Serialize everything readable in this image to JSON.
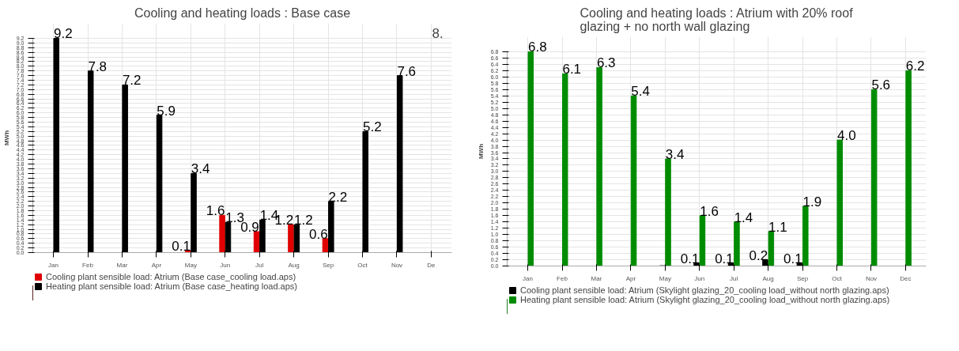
{
  "chart_data": [
    {
      "type": "bar",
      "title": "Cooling and heating loads : Base case",
      "ylabel": "MWh",
      "categories": [
        "Jan",
        "Feb",
        "Mar",
        "Apr",
        "May",
        "Jun",
        "Jul",
        "Aug",
        "Sep",
        "Oct",
        "Nov",
        "De"
      ],
      "series": [
        {
          "name": "Cooling plant sensible load: Atrium (Base case_cooling load.aps)",
          "color": "#e00000",
          "values": [
            0,
            0,
            0,
            0,
            0.1,
            1.6,
            0.9,
            1.2,
            0.6,
            0,
            0,
            null
          ],
          "value_labels": [
            null,
            null,
            null,
            null,
            "0.1",
            "1.6",
            "0.9",
            "1.2",
            "0.6",
            null,
            null,
            null
          ]
        },
        {
          "name": "Heating plant sensible load: Atrium (Base case_heating load.aps)",
          "color": "#000000",
          "values": [
            9.2,
            7.8,
            7.2,
            5.9,
            3.4,
            1.3,
            1.4,
            1.2,
            2.2,
            5.2,
            7.6,
            null
          ],
          "value_labels": [
            "9.2",
            "7.8",
            "7.2",
            "5.9",
            "3.4",
            "1.3",
            "1.4",
            "1.2",
            "2.2",
            "5.2",
            "7.6",
            null
          ]
        }
      ],
      "ylim": [
        0,
        9.2
      ],
      "yticks": [
        "0.0",
        "0.2",
        "0.4",
        "0.6",
        "0.8",
        "1.0",
        "1.2",
        "1.4",
        "1.6",
        "1.8",
        "2.0",
        "2.2",
        "2.4",
        "2.6",
        "2.8",
        "3.0",
        "3.2",
        "3.4",
        "3.6",
        "3.8",
        "4.0",
        "4.2",
        "4.4",
        "4.6",
        "4.8",
        "5.0",
        "5.2",
        "5.4",
        "5.6",
        "5.8",
        "6.0",
        "6.2",
        "6.4",
        "6.6",
        "6.8",
        "7.0",
        "7.2",
        "7.4",
        "7.6",
        "7.8",
        "8.0",
        "8.2",
        "8.4",
        "8.6",
        "8.8",
        "9.0",
        "9.2"
      ],
      "annotations": [
        "8."
      ],
      "grid": true,
      "legend": "bottom"
    },
    {
      "type": "bar",
      "title": "Cooling and heating loads : Atrium with 20% roof glazing + no north wall glazing",
      "ylabel": "MWh",
      "categories": [
        "Jan",
        "Feb",
        "Mar",
        "Apr",
        "May",
        "Jun",
        "Jul",
        "Aug",
        "Sep",
        "Oct",
        "Nov",
        "Dec"
      ],
      "series": [
        {
          "name": "Cooling plant sensible load: Atrium (Skylight glazing_20_cooling load_without north glazing.aps)",
          "color": "#000000",
          "values": [
            0,
            0,
            0,
            0,
            0.01,
            0.1,
            0.1,
            0.2,
            0.1,
            0,
            0,
            0
          ],
          "value_labels": [
            null,
            null,
            null,
            null,
            null,
            "0.1",
            "0.1",
            "0.2",
            "0.1",
            null,
            null,
            null
          ]
        },
        {
          "name": "Heating plant sensible load: Atrium (Skylight glazing_20_cooling load_without north glazing.aps)",
          "color": "#008c00",
          "values": [
            6.8,
            6.1,
            6.3,
            5.4,
            3.4,
            1.6,
            1.4,
            1.1,
            1.9,
            4.0,
            5.6,
            6.2
          ],
          "value_labels": [
            "6.8",
            "6.1",
            "6.3",
            "5.4",
            "3.4",
            "1.6",
            "1.4",
            "1.1",
            "1.9",
            "4.0",
            "5.6",
            "6.2"
          ]
        }
      ],
      "ylim": [
        0,
        6.8
      ],
      "yticks": [
        "0.0",
        "0.2",
        "0.4",
        "0.6",
        "0.8",
        "1.0",
        "1.2",
        "1.4",
        "1.6",
        "1.8",
        "2.0",
        "2.2",
        "2.4",
        "2.6",
        "2.8",
        "3.0",
        "3.2",
        "3.4",
        "3.6",
        "3.8",
        "4.0",
        "4.2",
        "4.4",
        "4.6",
        "4.8",
        "5.0",
        "5.2",
        "5.4",
        "5.6",
        "5.8",
        "6.0",
        "6.2",
        "6.4",
        "6.6",
        "6.8"
      ],
      "grid": true,
      "legend": "bottom"
    }
  ]
}
